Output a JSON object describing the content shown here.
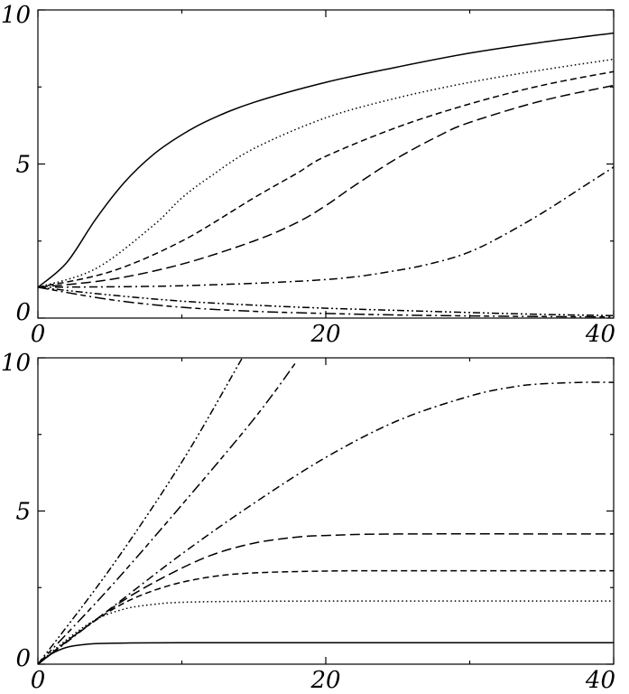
{
  "chart_data": [
    {
      "type": "line",
      "title": "",
      "xlabel": "",
      "ylabel": "",
      "xlim": [
        0,
        40
      ],
      "ylim": [
        0,
        10
      ],
      "x_ticks": [
        "0",
        "20",
        "40"
      ],
      "y_ticks": [
        "0",
        "5",
        "10"
      ],
      "grid": false,
      "legend": "none",
      "series": [
        {
          "style": "solid",
          "x": [
            0,
            2,
            4,
            6,
            8,
            10,
            12,
            15,
            20,
            25,
            30,
            35,
            40
          ],
          "y": [
            1.0,
            1.8,
            3.2,
            4.4,
            5.3,
            5.95,
            6.45,
            7.0,
            7.65,
            8.15,
            8.6,
            8.95,
            9.25
          ]
        },
        {
          "style": "dotted",
          "x": [
            0,
            4,
            8,
            10,
            12,
            15,
            20,
            25,
            30,
            35,
            40
          ],
          "y": [
            1.0,
            1.6,
            3.0,
            3.9,
            4.6,
            5.5,
            6.5,
            7.15,
            7.65,
            8.05,
            8.4
          ]
        },
        {
          "style": "dashed",
          "x": [
            0,
            5,
            10,
            15,
            18,
            20,
            25,
            30,
            35,
            40
          ],
          "y": [
            1.0,
            1.5,
            2.5,
            3.9,
            4.7,
            5.25,
            6.2,
            6.95,
            7.55,
            8.0
          ]
        },
        {
          "style": "long-dashed",
          "x": [
            0,
            5,
            10,
            15,
            18,
            20,
            22,
            25,
            28,
            30,
            35,
            40
          ],
          "y": [
            1.0,
            1.25,
            1.75,
            2.5,
            3.1,
            3.65,
            4.3,
            5.2,
            5.95,
            6.35,
            7.05,
            7.55
          ]
        },
        {
          "style": "dash-dot",
          "x": [
            0,
            10,
            20,
            25,
            28,
            30,
            32,
            35,
            38,
            40
          ],
          "y": [
            1.0,
            1.05,
            1.25,
            1.55,
            1.85,
            2.15,
            2.6,
            3.4,
            4.3,
            4.9
          ]
        },
        {
          "style": "dash-dot-dot",
          "x": [
            0,
            5,
            10,
            15,
            20,
            25,
            30,
            35,
            40
          ],
          "y": [
            1.0,
            0.75,
            0.55,
            0.42,
            0.32,
            0.25,
            0.18,
            0.12,
            0.08
          ]
        },
        {
          "style": "dash-dash-dot",
          "x": [
            0,
            5,
            10,
            15,
            20,
            25,
            30,
            35,
            40
          ],
          "y": [
            1.0,
            0.6,
            0.35,
            0.22,
            0.15,
            0.1,
            0.07,
            0.05,
            0.04
          ]
        }
      ]
    },
    {
      "type": "line",
      "title": "",
      "xlabel": "",
      "ylabel": "",
      "xlim": [
        0,
        40
      ],
      "ylim": [
        0,
        10
      ],
      "x_ticks": [
        "0",
        "20",
        "40"
      ],
      "y_ticks": [
        "0",
        "5",
        "10"
      ],
      "grid": false,
      "legend": "none",
      "series": [
        {
          "style": "solid",
          "x": [
            0,
            1,
            2,
            3,
            4,
            6,
            10,
            20,
            40
          ],
          "y": [
            0,
            0.35,
            0.55,
            0.63,
            0.67,
            0.69,
            0.7,
            0.7,
            0.7
          ]
        },
        {
          "style": "dotted",
          "x": [
            0,
            2,
            4,
            6,
            8,
            10,
            14,
            20,
            40
          ],
          "y": [
            0,
            0.8,
            1.45,
            1.8,
            1.95,
            2.02,
            2.05,
            2.06,
            2.06
          ]
        },
        {
          "style": "dashed",
          "x": [
            0,
            3,
            6,
            9,
            12,
            15,
            20,
            25,
            40
          ],
          "y": [
            0,
            1.1,
            2.0,
            2.55,
            2.85,
            2.98,
            3.04,
            3.05,
            3.05
          ]
        },
        {
          "style": "long-dashed",
          "x": [
            0,
            3,
            6,
            9,
            12,
            15,
            18,
            20,
            25,
            40
          ],
          "y": [
            0,
            1.1,
            2.1,
            2.9,
            3.55,
            3.95,
            4.15,
            4.2,
            4.25,
            4.25
          ]
        },
        {
          "style": "dash-dot",
          "x": [
            0,
            5,
            10,
            15,
            20,
            25,
            30,
            33,
            35,
            38,
            40
          ],
          "y": [
            0,
            1.8,
            3.6,
            5.25,
            6.75,
            7.95,
            8.75,
            9.05,
            9.15,
            9.2,
            9.2
          ]
        },
        {
          "style": "dash-dash-dot",
          "x": [
            0,
            5,
            10,
            15,
            18
          ],
          "y": [
            0,
            2.5,
            5.2,
            8.0,
            9.9
          ]
        },
        {
          "style": "dash-dot-dot",
          "x": [
            0,
            5,
            10,
            14.2
          ],
          "y": [
            0,
            3.1,
            6.6,
            10.0
          ]
        }
      ]
    }
  ]
}
